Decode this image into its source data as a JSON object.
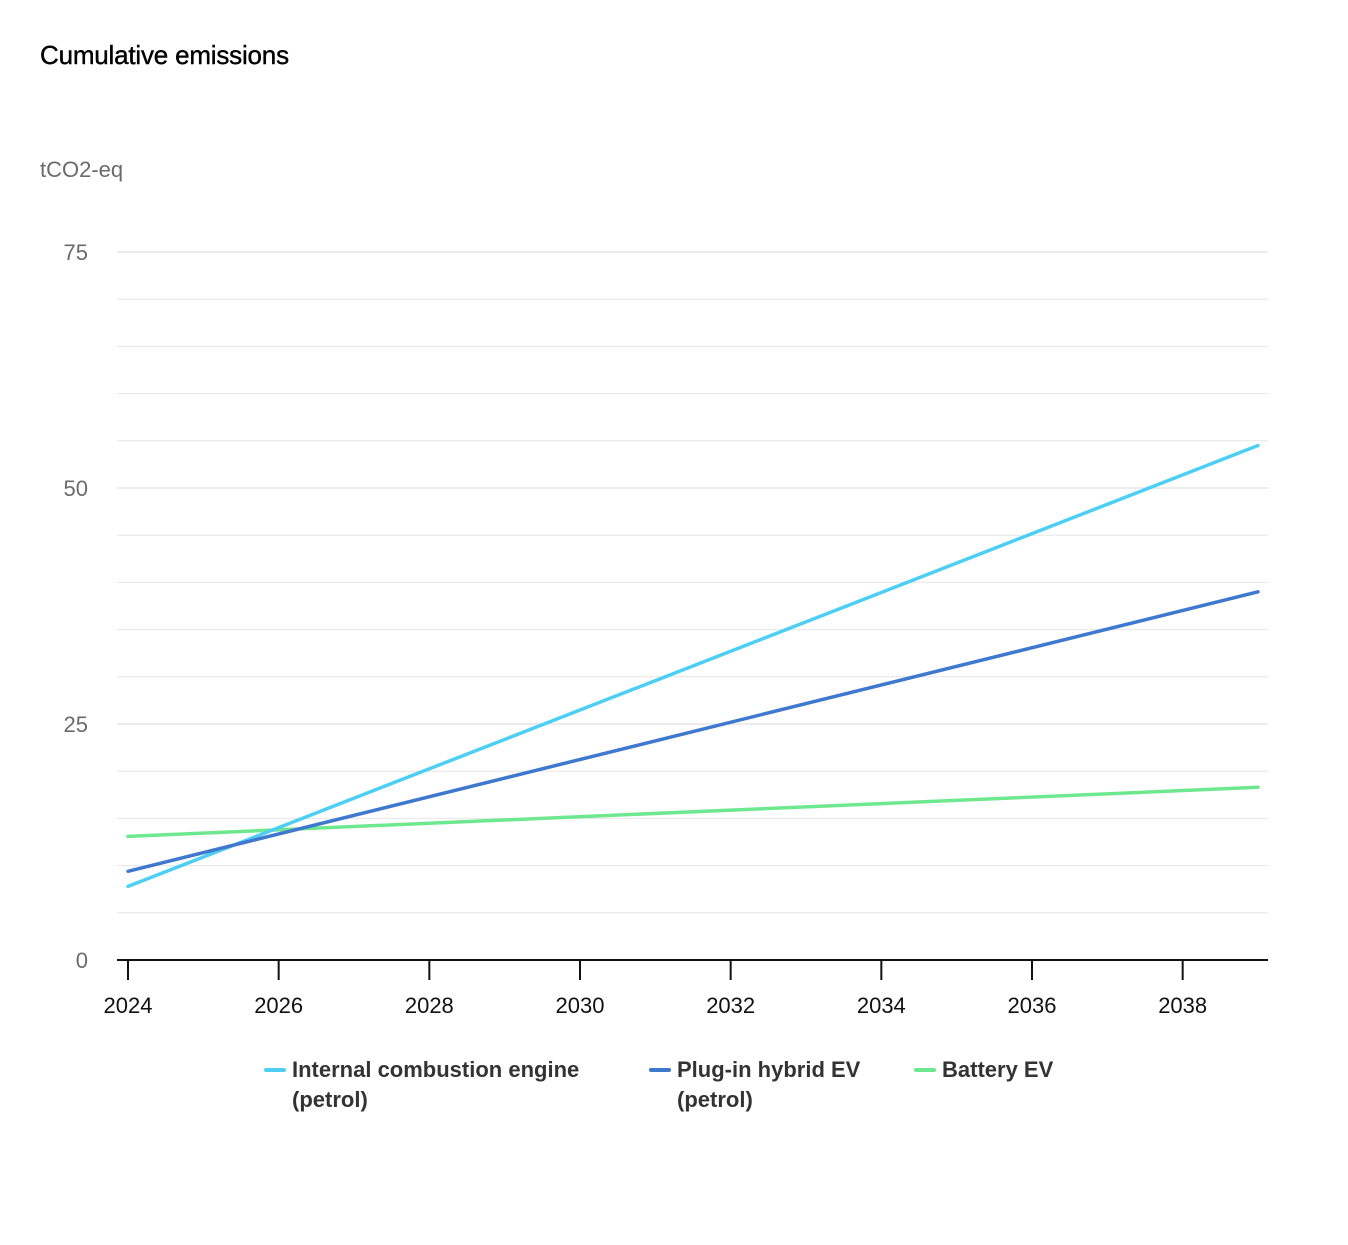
{
  "title": "Cumulative emissions",
  "unit": "tCO2-eq",
  "colors": {
    "ice": "#4dcff5",
    "phev": "#3f78cf",
    "bev": "#6ee88f",
    "grid": "#e6e6e6",
    "axis": "#111111"
  },
  "legend": {
    "ice_line1": "Internal combustion engine",
    "ice_line2": "(petrol)",
    "phev_line1": "Plug-in hybrid EV",
    "phev_line2": "(petrol)",
    "bev_line1": "Battery EV"
  },
  "chart_data": {
    "type": "line",
    "title": "Cumulative emissions",
    "ylabel": "tCO2-eq",
    "xlabel": "",
    "xlim": [
      2024,
      2039
    ],
    "ylim": [
      0,
      75
    ],
    "x_ticks": [
      2024,
      2026,
      2028,
      2030,
      2032,
      2034,
      2036,
      2038
    ],
    "y_ticks": [
      0,
      25,
      50,
      75
    ],
    "grid": true,
    "legend_position": "bottom-center",
    "series": [
      {
        "name": "Internal combustion engine (petrol)",
        "color": "#4dcff5",
        "x": [
          2024,
          2039
        ],
        "y": [
          7.8,
          54.5
        ]
      },
      {
        "name": "Plug-in hybrid EV (petrol)",
        "color": "#3f78cf",
        "x": [
          2024,
          2039
        ],
        "y": [
          9.4,
          39.0
        ]
      },
      {
        "name": "Battery EV",
        "color": "#6ee88f",
        "x": [
          2024,
          2039
        ],
        "y": [
          13.1,
          18.3
        ]
      }
    ]
  }
}
